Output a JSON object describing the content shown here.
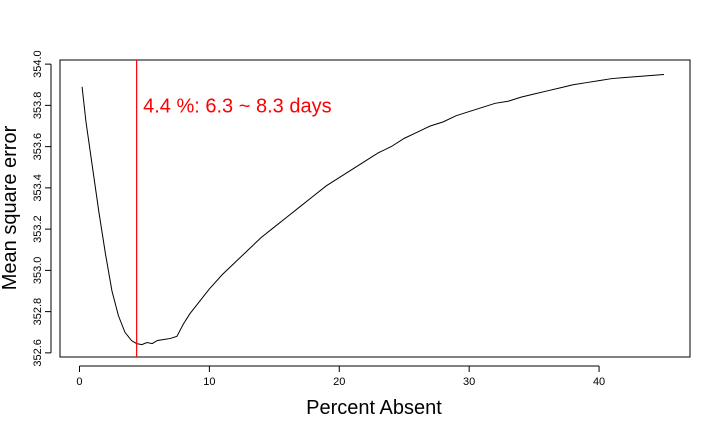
{
  "chart_data": {
    "type": "line",
    "title": "",
    "xlabel": "Percent Absent",
    "ylabel": "Mean square error",
    "xlim": [
      -1.5,
      47.0
    ],
    "ylim": [
      352.58,
      354.02
    ],
    "x_ticks": [
      0,
      10,
      20,
      30,
      40
    ],
    "x_tick_labels": [
      "0",
      "10",
      "20",
      "30",
      "40"
    ],
    "y_ticks": [
      352.6,
      352.8,
      353.0,
      353.2,
      353.4,
      353.6,
      353.8,
      354.0
    ],
    "y_tick_labels": [
      "352.6",
      "352.8",
      "353.0",
      "353.2",
      "353.4",
      "353.6",
      "353.8",
      "354.0"
    ],
    "grid": false,
    "series": [
      {
        "color": "#000000",
        "x": [
          0.2,
          0.5,
          1.0,
          1.5,
          2.0,
          2.5,
          3.0,
          3.5,
          4.0,
          4.4,
          4.8,
          5.2,
          5.6,
          6.0,
          6.5,
          7.0,
          7.5,
          8.0,
          8.5,
          9.0,
          9.5,
          10.0,
          11.0,
          12.0,
          13.0,
          14.0,
          15.0,
          16.0,
          17.0,
          18.0,
          19.0,
          20.0,
          21.0,
          22.0,
          23.0,
          24.0,
          25.0,
          26.0,
          27.0,
          28.0,
          29.0,
          30.0,
          31.0,
          32.0,
          33.0,
          34.0,
          35.0,
          36.0,
          37.0,
          38.0,
          39.0,
          40.0,
          41.0,
          42.0,
          43.0,
          44.0,
          45.0
        ],
        "y": [
          353.89,
          353.72,
          353.5,
          353.28,
          353.08,
          352.9,
          352.78,
          352.7,
          352.66,
          352.645,
          352.64,
          352.65,
          352.645,
          352.66,
          352.665,
          352.67,
          352.68,
          352.74,
          352.79,
          352.83,
          352.87,
          352.91,
          352.98,
          353.04,
          353.1,
          353.16,
          353.21,
          353.26,
          353.31,
          353.36,
          353.41,
          353.45,
          353.49,
          353.53,
          353.57,
          353.6,
          353.64,
          353.67,
          353.7,
          353.72,
          353.75,
          353.77,
          353.79,
          353.81,
          353.82,
          353.84,
          353.855,
          353.87,
          353.885,
          353.9,
          353.91,
          353.92,
          353.93,
          353.935,
          353.94,
          353.945,
          353.95
        ]
      }
    ],
    "vline": {
      "x": 4.4,
      "color": "#ff0000"
    },
    "annotation": {
      "text": "4.4 %: 6.3 ~ 8.3 days",
      "color": "#ff0000",
      "x": 4.9,
      "y": 353.8
    }
  }
}
